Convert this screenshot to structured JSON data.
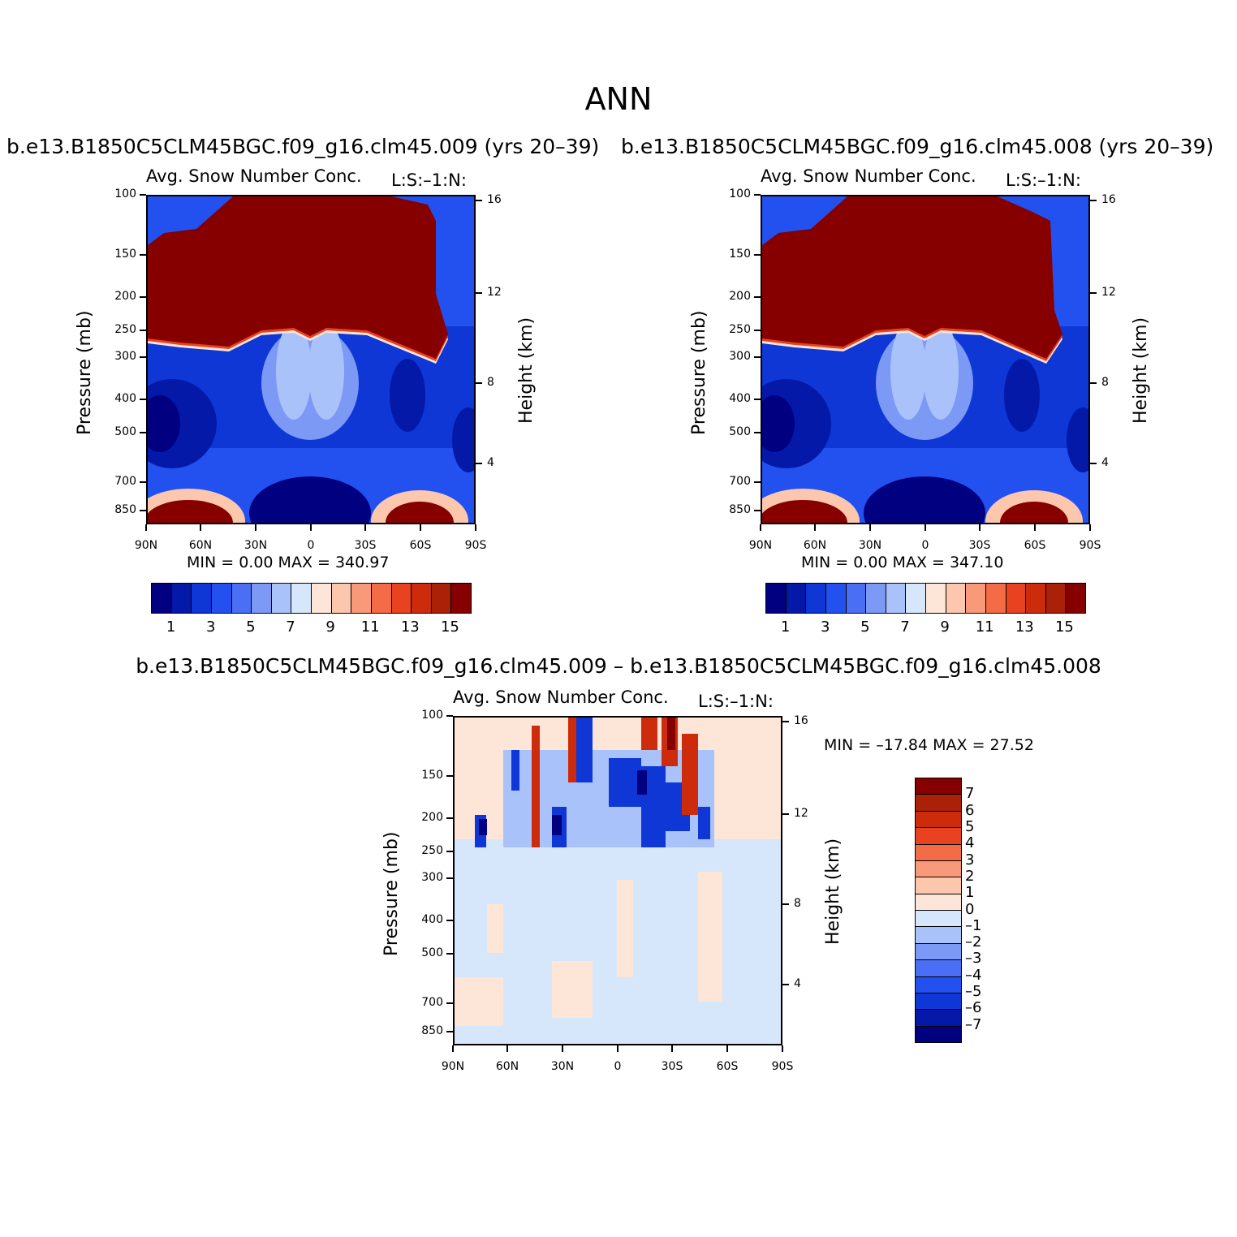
{
  "page_title": "ANN",
  "colors": {
    "scale": [
      "#000080",
      "#0419a8",
      "#0f37d6",
      "#2351f0",
      "#4a6ff5",
      "#7b99f5",
      "#aac2fa",
      "#d6e6fb",
      "#fde6d8",
      "#fcc7ad",
      "#f89a79",
      "#f46c46",
      "#e84220",
      "#cc2c0c",
      "#aa2108",
      "#870000"
    ]
  },
  "panels": [
    {
      "case_title": "b.e13.B1850C5CLM45BGC.f09_g16.clm45.009 (yrs 20–39)",
      "var_title": "Avg. Snow Number Conc.",
      "ls_label": "L:S:–1:N:",
      "min_max": "MIN =     0.00   MAX = 340.97"
    },
    {
      "case_title": "b.e13.B1850C5CLM45BGC.f09_g16.clm45.008 (yrs 20–39)",
      "var_title": "Avg. Snow Number Conc.",
      "ls_label": "L:S:–1:N:",
      "min_max": "MIN =     0.00   MAX = 347.10"
    },
    {
      "case_title": "b.e13.B1850C5CLM45BGC.f09_g16.clm45.009 – b.e13.B1850C5CLM45BGC.f09_g16.clm45.008",
      "var_title": "Avg. Snow Number Conc.",
      "ls_label": "L:S:–1:N:",
      "min_max": "MIN = –17.84   MAX =   27.52"
    }
  ],
  "axes": {
    "ylabel_left": "Pressure (mb)",
    "ylabel_right": "Height (km)",
    "pressure_ticks": [
      "100",
      "150",
      "200",
      "250",
      "300",
      "400",
      "500",
      "700",
      "850"
    ],
    "height_ticks": [
      "16",
      "12",
      "8",
      "4"
    ],
    "lat_ticks": [
      "90N",
      "60N",
      "30N",
      "0",
      "30S",
      "60S",
      "90S"
    ]
  },
  "colorbars": {
    "abs_labels": [
      "1",
      "3",
      "5",
      "7",
      "9",
      "11",
      "13",
      "15"
    ],
    "diff_labels": [
      "7",
      "6",
      "5",
      "4",
      "3",
      "2",
      "1",
      "0",
      "–1",
      "–2",
      "–3",
      "–4",
      "–5",
      "–6",
      "–7"
    ]
  },
  "chart_data": [
    {
      "type": "heatmap",
      "title": "Avg. Snow Number Conc.",
      "ylabel": "Pressure (mb)",
      "y2label": "Height (km)",
      "x_ticks": [
        "90N",
        "60N",
        "30N",
        "0",
        "30S",
        "60S",
        "90S"
      ],
      "y_ticks": [
        100,
        150,
        200,
        250,
        300,
        400,
        500,
        700,
        850
      ],
      "y2_ticks": [
        16,
        12,
        8,
        4
      ],
      "colorbar_levels": [
        1,
        2,
        3,
        4,
        5,
        6,
        7,
        8,
        9,
        10,
        11,
        12,
        13,
        14,
        15
      ],
      "min": 0.0,
      "max": 340.97
    },
    {
      "type": "heatmap",
      "title": "Avg. Snow Number Conc.",
      "ylabel": "Pressure (mb)",
      "y2label": "Height (km)",
      "x_ticks": [
        "90N",
        "60N",
        "30N",
        "0",
        "30S",
        "60S",
        "90S"
      ],
      "y_ticks": [
        100,
        150,
        200,
        250,
        300,
        400,
        500,
        700,
        850
      ],
      "y2_ticks": [
        16,
        12,
        8,
        4
      ],
      "colorbar_levels": [
        1,
        2,
        3,
        4,
        5,
        6,
        7,
        8,
        9,
        10,
        11,
        12,
        13,
        14,
        15
      ],
      "min": 0.0,
      "max": 347.1
    },
    {
      "type": "heatmap",
      "title": "Avg. Snow Number Conc.",
      "ylabel": "Pressure (mb)",
      "y2label": "Height (km)",
      "x_ticks": [
        "90N",
        "60N",
        "30N",
        "0",
        "30S",
        "60S",
        "90S"
      ],
      "y_ticks": [
        100,
        150,
        200,
        250,
        300,
        400,
        500,
        700,
        850
      ],
      "y2_ticks": [
        16,
        12,
        8,
        4
      ],
      "colorbar_levels": [
        -7,
        -6,
        -5,
        -4,
        -3,
        -2,
        -1,
        0,
        1,
        2,
        3,
        4,
        5,
        6,
        7
      ],
      "min": -17.84,
      "max": 27.52
    }
  ]
}
